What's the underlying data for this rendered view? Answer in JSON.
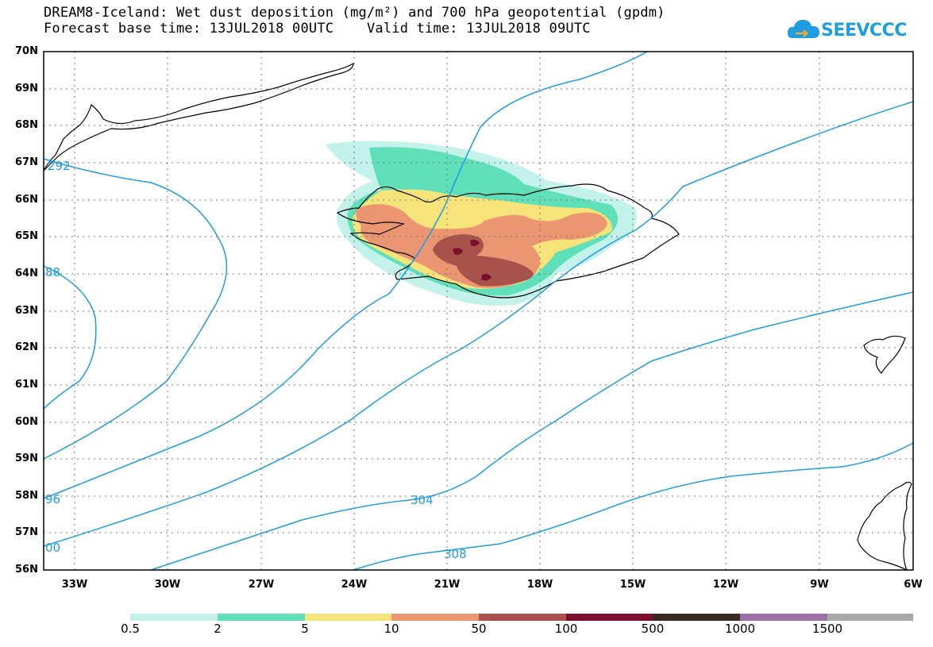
{
  "header": {
    "title_line1": "DREAM8-Iceland: Wet dust deposition (mg/m²) and 700 hPa geopotential (gpdm)",
    "title_line2": "Forecast base time: 13JUL2018 00UTC    Valid time: 13JUL2018 09UTC"
  },
  "logo": {
    "text": "SEEVCCC",
    "icon": "cloud-icon",
    "color": "#1e9de0"
  },
  "axes": {
    "lat_labels": [
      "70N",
      "69N",
      "68N",
      "67N",
      "66N",
      "65N",
      "64N",
      "63N",
      "62N",
      "61N",
      "60N",
      "59N",
      "58N",
      "57N",
      "56N"
    ],
    "lon_labels": [
      "33W",
      "30W",
      "27W",
      "24W",
      "21W",
      "18W",
      "15W",
      "12W",
      "9W",
      "6W"
    ]
  },
  "contours": {
    "color": "#1e9de0",
    "labels": [
      "292",
      "88",
      "96",
      "00",
      "304",
      "308"
    ]
  },
  "legend": {
    "colors": [
      "#c2f2ea",
      "#5fe0b8",
      "#f6e37a",
      "#eb9670",
      "#a9514b",
      "#7c0f2e",
      "#3a2a1e",
      "#9c6fa6",
      "#a8a8a8"
    ],
    "labels": [
      "0.5",
      "2",
      "5",
      "10",
      "50",
      "100",
      "500",
      "1000",
      "1500"
    ]
  }
}
